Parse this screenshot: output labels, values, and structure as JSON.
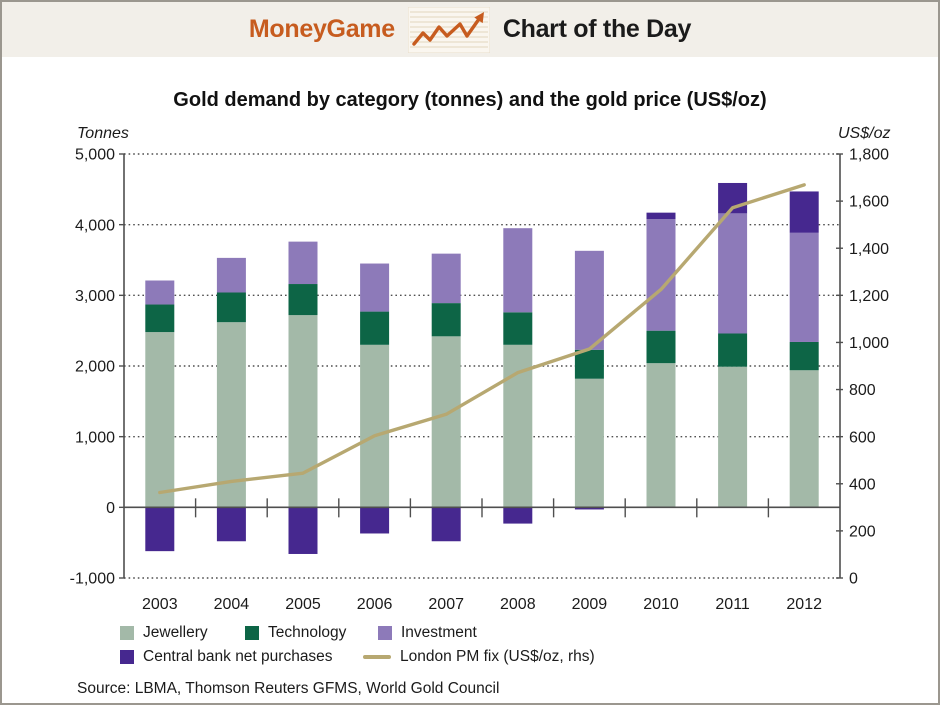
{
  "header": {
    "brand": "MoneyGame",
    "title": "Chart of the Day"
  },
  "colors": {
    "brand_orange": "#c75c1f",
    "header_background": "#f2efe9",
    "axis_gray": "#4f4f4f",
    "jewellery_green": "#a3b9a8",
    "technology_green": "#0d6546",
    "investment_purple": "#8d7ab9",
    "central_bank_purple": "#46288f",
    "gold_price_line_tan": "#b7a871"
  },
  "chart_data": {
    "type": "bar",
    "subtype": "stacked-bar-with-line-overlay",
    "title": "Gold demand by category (tonnes) and the gold price (US$/oz)",
    "legend_position": "bottom",
    "grid": "dotted horizontal gridlines every 1,000 tonnes, solid zero line",
    "categories": [
      "2003",
      "2004",
      "2005",
      "2006",
      "2007",
      "2008",
      "2009",
      "2010",
      "2011",
      "2012"
    ],
    "left_axis": {
      "label": "Tonnes",
      "min": -1000,
      "max": 5000,
      "tick_step": 1000
    },
    "right_axis": {
      "label": "US$/oz",
      "min": 0,
      "max": 1800,
      "tick_step": 200
    },
    "series": [
      {
        "name": "Jewellery",
        "color": "#a3b9a8",
        "values": [
          2480,
          2620,
          2720,
          2300,
          2420,
          2300,
          1820,
          2040,
          1990,
          1940
        ]
      },
      {
        "name": "Technology",
        "color": "#0d6546",
        "values": [
          390,
          420,
          440,
          470,
          470,
          460,
          410,
          460,
          470,
          400
        ]
      },
      {
        "name": "Investment",
        "color": "#8d7ab9",
        "values": [
          340,
          490,
          600,
          680,
          700,
          1190,
          1400,
          1580,
          1700,
          1545
        ]
      },
      {
        "name": "Central bank net purchases",
        "color": "#46288f",
        "values": [
          -620,
          -480,
          -660,
          -370,
          -480,
          -230,
          -30,
          90,
          430,
          585
        ]
      }
    ],
    "line": {
      "name": "London PM fix (US$/oz, rhs)",
      "axis": "right",
      "color": "#b7a871",
      "values": [
        363,
        410,
        445,
        604,
        695,
        872,
        972,
        1225,
        1572,
        1669
      ]
    }
  },
  "source": "Source: LBMA, Thomson Reuters GFMS, World Gold Council"
}
